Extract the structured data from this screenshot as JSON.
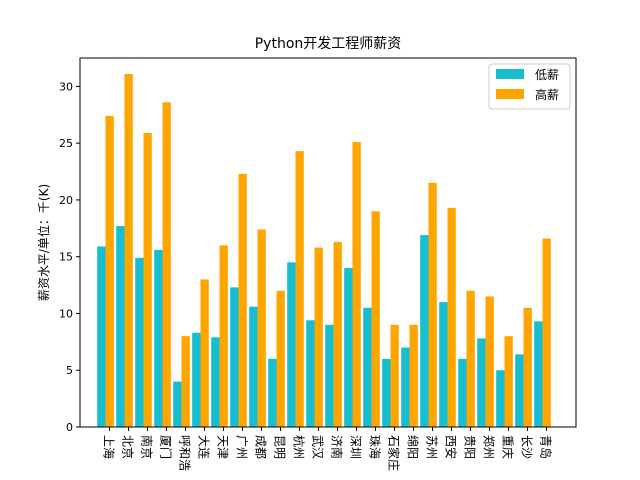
{
  "chart_data": {
    "type": "bar",
    "title": "Python开发工程师薪资",
    "xlabel": "",
    "ylabel": "薪资水平/单位：千(K)",
    "ylim": [
      0,
      32.5
    ],
    "yticks": [
      0,
      5,
      10,
      15,
      20,
      25,
      30
    ],
    "grid": false,
    "legend_position": "top-right",
    "categories": [
      "上海",
      "北京",
      "南京",
      "厦门",
      "呼和浩",
      "大连",
      "天津",
      "广州",
      "成都",
      "昆明",
      "杭州",
      "武汉",
      "济南",
      "深圳",
      "珠海",
      "石家庄",
      "绵阳",
      "苏州",
      "西安",
      "贵阳",
      "郑州",
      "重庆",
      "长沙",
      "青岛"
    ],
    "series": [
      {
        "name": "低薪",
        "color": "#17becf",
        "values": [
          15.9,
          17.7,
          14.9,
          15.6,
          4.0,
          8.3,
          7.9,
          12.3,
          10.6,
          6.0,
          14.5,
          9.4,
          9.0,
          14.0,
          10.5,
          6.0,
          7.0,
          16.9,
          11.0,
          6.0,
          7.8,
          5.0,
          6.4,
          9.3
        ]
      },
      {
        "name": "高薪",
        "color": "#ffa500",
        "values": [
          27.4,
          31.1,
          25.9,
          28.6,
          8.0,
          13.0,
          16.0,
          22.3,
          17.4,
          12.0,
          24.3,
          15.8,
          16.3,
          25.1,
          19.0,
          9.0,
          9.0,
          21.5,
          19.3,
          12.0,
          11.5,
          8.0,
          10.5,
          16.6
        ]
      }
    ]
  }
}
